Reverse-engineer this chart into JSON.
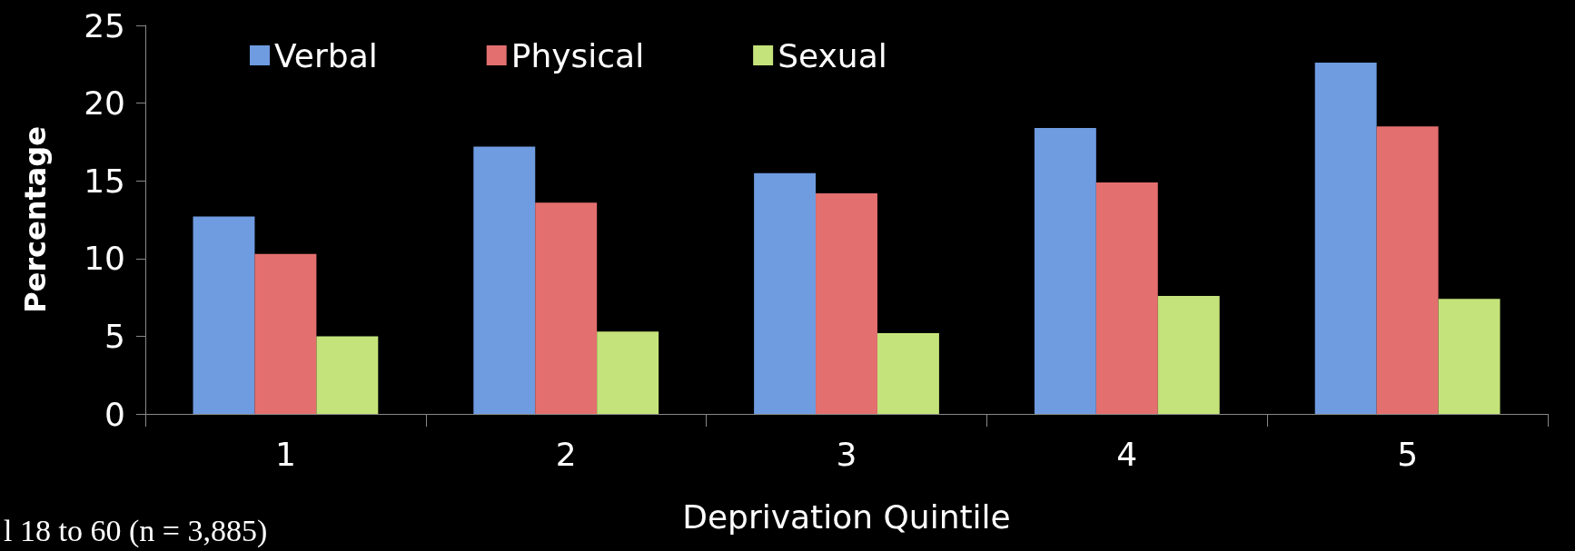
{
  "chart_data": {
    "type": "bar",
    "xlabel": "Deprivation Quintile",
    "ylabel": "Percentage",
    "categories": [
      "1",
      "2",
      "3",
      "4",
      "5"
    ],
    "series": [
      {
        "name": "Verbal",
        "color": "#6f9be0",
        "values": [
          12.7,
          17.2,
          15.5,
          18.4,
          22.6
        ]
      },
      {
        "name": "Physical",
        "color": "#e46f6f",
        "values": [
          10.3,
          13.6,
          14.2,
          14.9,
          18.5
        ]
      },
      {
        "name": "Sexual",
        "color": "#c4e37a",
        "values": [
          5.0,
          5.3,
          5.2,
          7.6,
          7.4
        ]
      }
    ],
    "ylim": [
      0,
      25
    ],
    "yticks": [
      0,
      5,
      10,
      15,
      20,
      25
    ],
    "grid": false,
    "legend": "top left",
    "annotations": [
      "l 18 to 60 (n = 3,885)"
    ]
  }
}
